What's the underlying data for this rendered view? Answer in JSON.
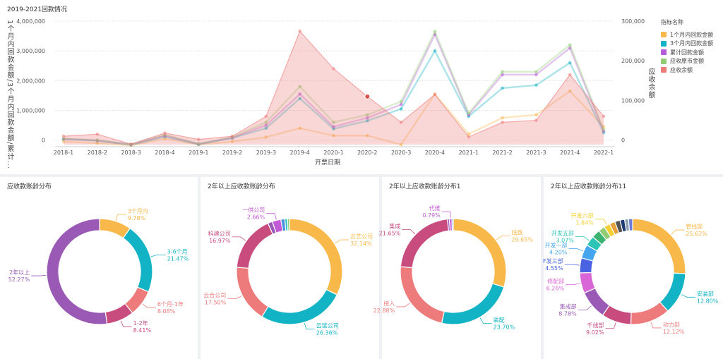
{
  "top": {
    "title": "2019-2021回款情况",
    "left_axis_title": "1个月内回款金额/3个月内回款金额/累计...",
    "right_axis_title": "应收余额",
    "x_axis_title": "开票日期",
    "legend_title": "指标名称"
  },
  "colors": {
    "orange": "#f9b84a",
    "teal": "#12b3c4",
    "purple": "#b35dd6",
    "green": "#91cc75",
    "red": "#ee7b7b"
  },
  "chart_data": [
    {
      "type": "line",
      "x": [
        "2018-1",
        "2018-2",
        "2018-3",
        "2018-4",
        "2019-1",
        "2019-2",
        "2019-3",
        "2019-4",
        "2020-1",
        "2020-2",
        "2020-3",
        "2020-4",
        "2021-1",
        "2021-2",
        "2021-3",
        "2021-4",
        "2022-1"
      ],
      "yticks_left": [
        "0",
        "1,000,000",
        "2,000,000",
        "3,000,000",
        "4,000,000"
      ],
      "yticks_right": [
        "0",
        "100,000",
        "200,000",
        "300,000"
      ],
      "ylim_left": [
        -150000,
        4000000
      ],
      "ylim_right": [
        -11250,
        300000
      ],
      "series": [
        {
          "name": "1个月内回款金额",
          "axis": "left",
          "color": "#f9b84a",
          "values": [
            -50000,
            -100000,
            -180000,
            50000,
            -150000,
            -50000,
            100000,
            400000,
            150000,
            150000,
            -150000,
            1550000,
            200000,
            750000,
            850000,
            1650000,
            450000
          ]
        },
        {
          "name": "3个月内回款金额",
          "axis": "left",
          "color": "#12b3c4",
          "values": [
            30000,
            -20000,
            -160000,
            120000,
            -140000,
            70000,
            400000,
            1400000,
            380000,
            650000,
            1050000,
            3000000,
            800000,
            1750000,
            1850000,
            2600000,
            250000
          ]
        },
        {
          "name": "累计回款金额",
          "axis": "left",
          "color": "#b35dd6",
          "values": [
            40000,
            -10000,
            -150000,
            150000,
            -130000,
            80000,
            500000,
            1550000,
            450000,
            750000,
            1200000,
            3550000,
            850000,
            2200000,
            2200000,
            3100000,
            300000
          ]
        },
        {
          "name": "应收原币金额",
          "axis": "left",
          "color": "#91cc75",
          "values": [
            50000,
            0,
            -140000,
            180000,
            -120000,
            100000,
            600000,
            1800000,
            600000,
            850000,
            1300000,
            3650000,
            900000,
            2300000,
            2300000,
            3200000,
            350000
          ]
        },
        {
          "name": "应收余额",
          "axis": "right",
          "color": "#ee7b7b",
          "area": true,
          "values": [
            10000,
            15000,
            -10000,
            18000,
            2000,
            10000,
            60000,
            275000,
            180000,
            110000,
            45000,
            115000,
            8000,
            45000,
            50000,
            165000,
            60000
          ]
        }
      ]
    },
    {
      "type": "pie",
      "title": "应收款账龄分布",
      "slices": [
        {
          "label": "3个月内",
          "value": 9.78,
          "pct": "9.78%",
          "color": "#f9b84a"
        },
        {
          "label": "3-6个月",
          "value": 21.47,
          "pct": "21.47%",
          "color": "#12b3c4"
        },
        {
          "label": "6个月-1年",
          "value": 8.08,
          "pct": "8.08%",
          "color": "#ee7b7b"
        },
        {
          "label": "1-2年",
          "value": 8.41,
          "pct": "8.41%",
          "color": "#c94c7f"
        },
        {
          "label": "2年以上",
          "value": 52.27,
          "pct": "52.27%",
          "color": "#9b59b6"
        }
      ]
    },
    {
      "type": "pie",
      "title": "2年以上应收款账龄分布",
      "slices": [
        {
          "label": "云艺公司",
          "value": 32.14,
          "pct": "32.14%",
          "color": "#f9b84a"
        },
        {
          "label": "云链公司",
          "value": 26.36,
          "pct": "26.36%",
          "color": "#12b3c4"
        },
        {
          "label": "云合公司",
          "value": 17.5,
          "pct": "17.50%",
          "color": "#ee7b7b"
        },
        {
          "label": "科建公司",
          "value": 16.97,
          "pct": "16.97%",
          "color": "#c94c7f"
        },
        {
          "label": "",
          "value": 1.4,
          "pct": "",
          "color": "#9b59b6"
        },
        {
          "label": "一供公司",
          "value": 2.66,
          "pct": "2.66%",
          "color": "#c35ad6"
        },
        {
          "label": "",
          "value": 1.2,
          "pct": "",
          "color": "#4a90e2"
        },
        {
          "label": "",
          "value": 0.8,
          "pct": "",
          "color": "#2ec4b6"
        },
        {
          "label": "",
          "value": 0.6,
          "pct": "",
          "color": "#91cc75"
        }
      ]
    },
    {
      "type": "pie",
      "title": "2年以上应收款账龄分布1",
      "slices": [
        {
          "label": "线路",
          "value": 29.65,
          "pct": "29.65%",
          "color": "#f9b84a"
        },
        {
          "label": "装配",
          "value": 23.7,
          "pct": "23.70%",
          "color": "#12b3c4"
        },
        {
          "label": "接入",
          "value": 22.88,
          "pct": "22.88%",
          "color": "#ee7b7b"
        },
        {
          "label": "集成",
          "value": 21.65,
          "pct": "21.65%",
          "color": "#c94c7f"
        },
        {
          "label": "",
          "value": 0.6,
          "pct": "",
          "color": "#9b59b6"
        },
        {
          "label": "代维",
          "value": 0.79,
          "pct": "0.79%",
          "color": "#c35ad6"
        },
        {
          "label": "",
          "value": 0.4,
          "pct": "",
          "color": "#4a90e2"
        }
      ]
    },
    {
      "type": "pie",
      "title": "2年以上应收款账龄分布11",
      "slices": [
        {
          "label": "管线部",
          "value": 25.62,
          "pct": "25.62%",
          "color": "#f9b84a"
        },
        {
          "label": "安装部",
          "value": 12.8,
          "pct": "12.80%",
          "color": "#12b3c4"
        },
        {
          "label": "动力部",
          "value": 12.12,
          "pct": "12.12%",
          "color": "#ee7b7b"
        },
        {
          "label": "千线部",
          "value": 9.02,
          "pct": "9.02%",
          "color": "#c94c7f"
        },
        {
          "label": "集成部",
          "value": 8.78,
          "pct": "8.78%",
          "color": "#9b59b6"
        },
        {
          "label": "修配部",
          "value": 6.26,
          "pct": "6.26%",
          "color": "#d966d6"
        },
        {
          "label": "F发三部",
          "value": 4.55,
          "pct": "4.55%",
          "color": "#4a63e2"
        },
        {
          "label": "开发一部",
          "value": 4.2,
          "pct": "4.20%",
          "color": "#45a6f0"
        },
        {
          "label": "开发五部",
          "value": 3.07,
          "pct": "3.07%",
          "color": "#2ec4b6"
        },
        {
          "label": "",
          "value": 2.6,
          "pct": "",
          "color": "#3cb371"
        },
        {
          "label": "",
          "value": 2.0,
          "pct": "",
          "color": "#91cc75"
        },
        {
          "label": "开发六部",
          "value": 1.84,
          "pct": "1.84%",
          "color": "#f5d033"
        },
        {
          "label": "",
          "value": 1.7,
          "pct": "",
          "color": "#e8a13a"
        },
        {
          "label": "",
          "value": 1.6,
          "pct": "",
          "color": "#555555"
        },
        {
          "label": "",
          "value": 1.4,
          "pct": "",
          "color": "#1f3b73"
        },
        {
          "label": "",
          "value": 1.2,
          "pct": "",
          "color": "#8fa0b3"
        },
        {
          "label": "",
          "value": 1.24,
          "pct": "",
          "color": "#6c7bd6"
        }
      ]
    }
  ]
}
